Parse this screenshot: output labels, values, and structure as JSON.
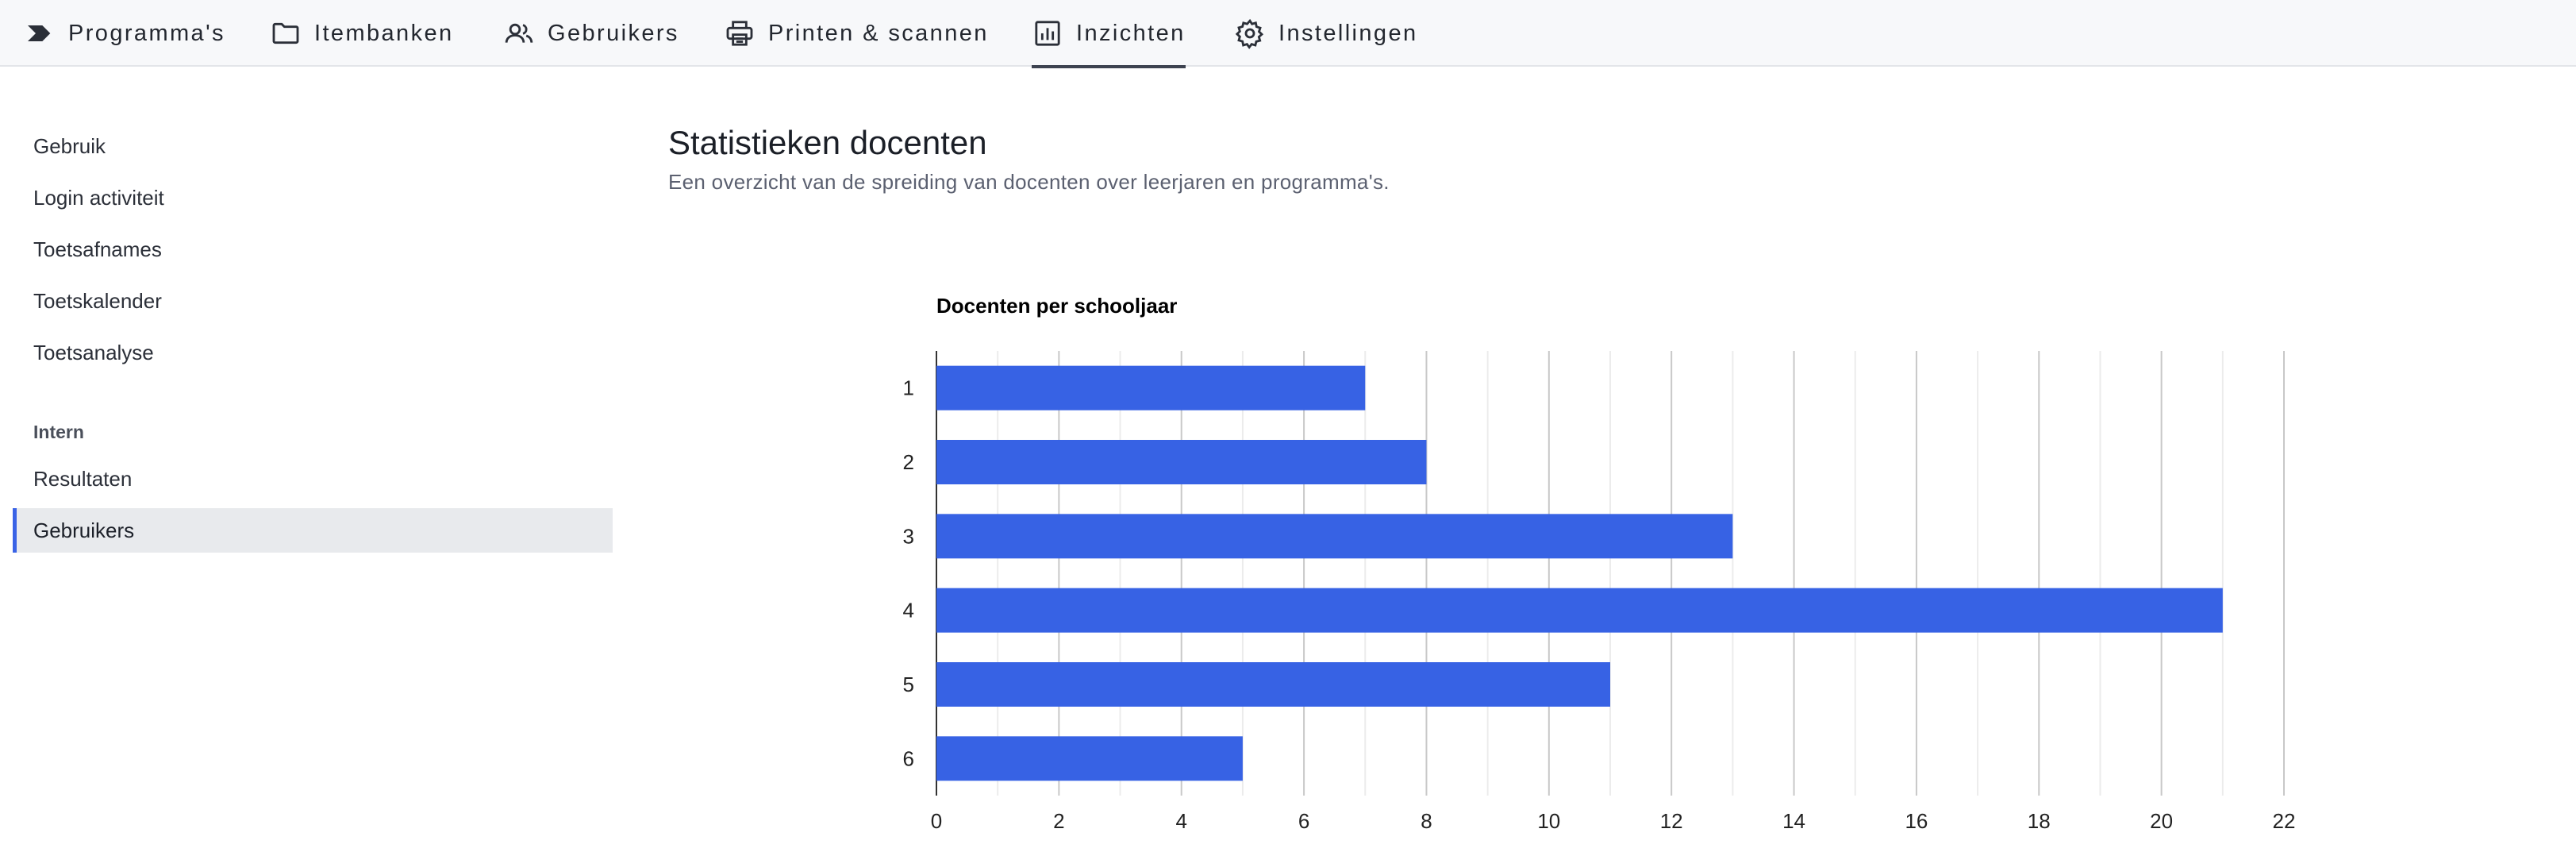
{
  "nav": {
    "items": [
      {
        "label": "Programma's",
        "icon": "programs-icon",
        "active": false
      },
      {
        "label": "Itembanken",
        "icon": "folder-icon",
        "active": false
      },
      {
        "label": "Gebruikers",
        "icon": "users-icon",
        "active": false
      },
      {
        "label": "Printen & scannen",
        "icon": "printer-icon",
        "active": false
      },
      {
        "label": "Inzichten",
        "icon": "chart-icon",
        "active": true
      },
      {
        "label": "Instellingen",
        "icon": "gear-icon",
        "active": false
      }
    ]
  },
  "sidebar": {
    "items": [
      {
        "label": "Gebruik"
      },
      {
        "label": "Login activiteit"
      },
      {
        "label": "Toetsafnames"
      },
      {
        "label": "Toetskalender"
      },
      {
        "label": "Toetsanalyse"
      }
    ],
    "section_heading": "Intern",
    "intern_items": [
      {
        "label": "Resultaten",
        "active": false
      },
      {
        "label": "Gebruikers",
        "active": true
      }
    ]
  },
  "page": {
    "title": "Statistieken docenten",
    "subtitle": "Een overzicht van de spreiding van docenten over leerjaren en programma's."
  },
  "colors": {
    "accent": "#3a63e6",
    "bar": "#3762e4"
  },
  "chart_data": {
    "type": "bar",
    "orientation": "horizontal",
    "title": "Docenten per schooljaar",
    "categories": [
      "1",
      "2",
      "3",
      "4",
      "5",
      "6"
    ],
    "values": [
      7,
      8,
      13,
      21,
      11,
      5
    ],
    "xlim": [
      0,
      22
    ],
    "xticks": [
      0,
      2,
      4,
      6,
      8,
      10,
      12,
      14,
      16,
      18,
      20,
      22
    ],
    "grid": true,
    "xlabel": "",
    "ylabel": ""
  }
}
